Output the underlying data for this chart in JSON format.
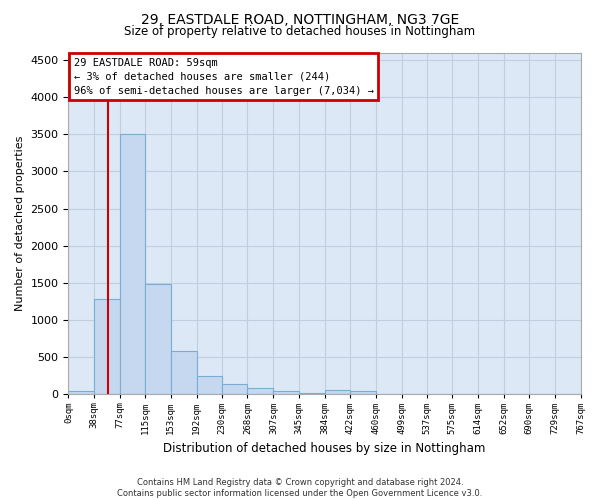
{
  "title": "29, EASTDALE ROAD, NOTTINGHAM, NG3 7GE",
  "subtitle": "Size of property relative to detached houses in Nottingham",
  "xlabel": "Distribution of detached houses by size in Nottingham",
  "ylabel": "Number of detached properties",
  "annotation_title": "29 EASTDALE ROAD: 59sqm",
  "annotation_line1": "← 3% of detached houses are smaller (244)",
  "annotation_line2": "96% of semi-detached houses are larger (7,034) →",
  "footer_line1": "Contains HM Land Registry data © Crown copyright and database right 2024.",
  "footer_line2": "Contains public sector information licensed under the Open Government Licence v3.0.",
  "property_size": 59,
  "bin_edges": [
    0,
    38,
    77,
    115,
    153,
    192,
    230,
    268,
    307,
    345,
    384,
    422,
    460,
    499,
    537,
    575,
    614,
    652,
    690,
    729,
    767
  ],
  "bar_heights": [
    50,
    1280,
    3500,
    1480,
    580,
    250,
    140,
    90,
    50,
    25,
    60,
    50,
    0,
    0,
    0,
    0,
    0,
    0,
    0,
    0
  ],
  "bar_color": "#c5d8f0",
  "bar_edge_color": "#7aadd4",
  "vline_color": "#cc0000",
  "annotation_box_color": "#cc0000",
  "background_color": "#ffffff",
  "plot_bg_color": "#dce8f5",
  "grid_color": "#c0cfe0",
  "ylim": [
    0,
    4600
  ],
  "yticks": [
    0,
    500,
    1000,
    1500,
    2000,
    2500,
    3000,
    3500,
    4000,
    4500
  ]
}
